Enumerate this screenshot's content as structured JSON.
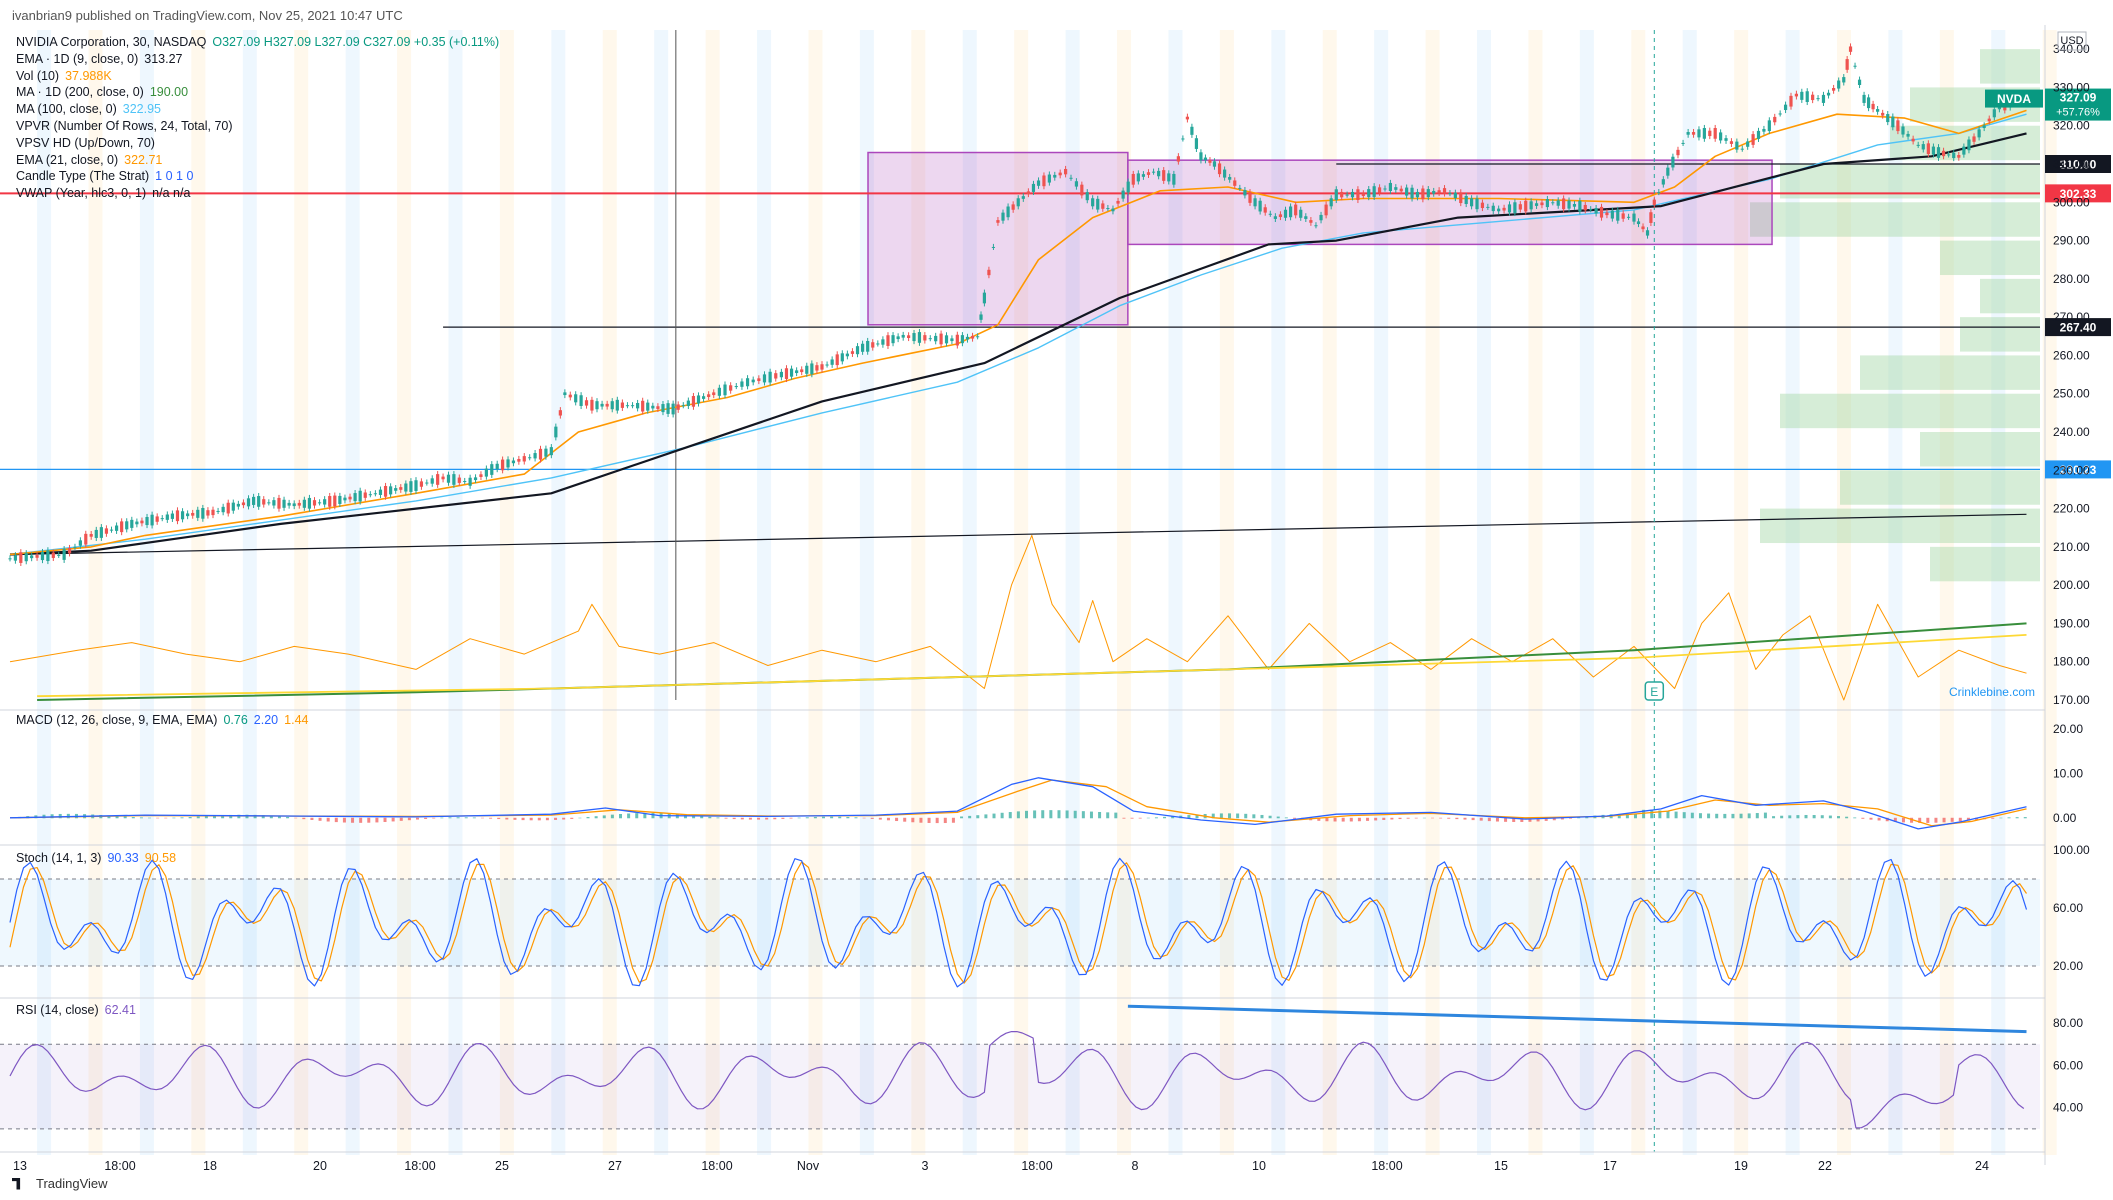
{
  "header": {
    "published": "ivanbrian9 published on TradingView.com, Nov 25, 2021 10:47 UTC",
    "currency": "USD"
  },
  "legend": [
    {
      "label": "NVIDIA Corporation, 30, NASDAQ",
      "value": "O327.09  H327.09  L327.09  C327.09  +0.35 (+0.11%)",
      "color": "#089981"
    },
    {
      "label": "EMA · 1D (9, close, 0)",
      "value": "313.27",
      "color": "#131722"
    },
    {
      "label": "Vol (10)",
      "value": "37.988K",
      "color": "#ff9800"
    },
    {
      "label": "MA · 1D (200, close, 0)",
      "value": "190.00",
      "color": "#388e3c"
    },
    {
      "label": "MA (100, close, 0)",
      "value": "322.95",
      "color": "#4fc3f7"
    },
    {
      "label": "VPVR (Number Of Rows, 24, Total, 70)",
      "value": "",
      "color": "#131722"
    },
    {
      "label": "VPSV HD (Up/Down, 70)",
      "value": "",
      "color": "#131722"
    },
    {
      "label": "EMA (21, close, 0)",
      "value": "322.71",
      "color": "#ff9800"
    },
    {
      "label": "Candle Type (The Strat)",
      "value": "1  0  1  0",
      "color": "#2962ff"
    },
    {
      "label": "VWAP (Year, hlc3, 0, 1)",
      "value": "n/a  n/a",
      "color": "#131722"
    }
  ],
  "panes": {
    "macd": {
      "label": "MACD (12, 26, close, 9, EMA, EMA)",
      "values": [
        "0.76",
        "2.20",
        "1.44"
      ],
      "colors": [
        "#089981",
        "#2962ff",
        "#ff9800"
      ]
    },
    "stoch": {
      "label": "Stoch (14, 1, 3)",
      "values": [
        "90.33",
        "90.58"
      ],
      "colors": [
        "#2962ff",
        "#ff9800"
      ]
    },
    "rsi": {
      "label": "RSI (14, close)",
      "values": [
        "62.41"
      ],
      "colors": [
        "#7e57c2"
      ]
    }
  },
  "watermark": "Crinklebine.com",
  "earnings_marker": "E",
  "footer": {
    "brand": "TradingView"
  },
  "chart_data": {
    "type": "line",
    "symbol": "NVDA",
    "price_axis": {
      "ylim": [
        170,
        345
      ],
      "ticks": [
        170,
        180,
        190,
        200,
        210,
        220,
        230,
        240,
        250,
        260,
        270,
        280,
        290,
        300,
        310,
        320,
        330,
        340
      ]
    },
    "time_ticks": [
      "13",
      "18:00",
      "18",
      "20",
      "18:00",
      "25",
      "27",
      "18:00",
      "Nov",
      "3",
      "18:00",
      "8",
      "10",
      "18:00",
      "15",
      "17",
      "19",
      "22",
      "24"
    ],
    "price_series": {
      "name": "NVDA",
      "color": "#089981",
      "points": [
        [
          0,
          207
        ],
        [
          40,
          208
        ],
        [
          60,
          213
        ],
        [
          90,
          216
        ],
        [
          120,
          218
        ],
        [
          150,
          219
        ],
        [
          180,
          222
        ],
        [
          210,
          221
        ],
        [
          240,
          222
        ],
        [
          270,
          224
        ],
        [
          300,
          226
        ],
        [
          320,
          228
        ],
        [
          340,
          227
        ],
        [
          360,
          231
        ],
        [
          380,
          233
        ],
        [
          400,
          235
        ],
        [
          410,
          250
        ],
        [
          430,
          247
        ],
        [
          460,
          247
        ],
        [
          490,
          246
        ],
        [
          520,
          250
        ],
        [
          545,
          253
        ],
        [
          570,
          255
        ],
        [
          600,
          257
        ],
        [
          630,
          262
        ],
        [
          660,
          265
        ],
        [
          700,
          264
        ],
        [
          715,
          265
        ],
        [
          720,
          275
        ],
        [
          730,
          295
        ],
        [
          745,
          300
        ],
        [
          760,
          305
        ],
        [
          780,
          308
        ],
        [
          800,
          300
        ],
        [
          815,
          298
        ],
        [
          830,
          306
        ],
        [
          845,
          308
        ],
        [
          860,
          306
        ],
        [
          870,
          322
        ],
        [
          880,
          312
        ],
        [
          890,
          310
        ],
        [
          905,
          305
        ],
        [
          920,
          300
        ],
        [
          935,
          296
        ],
        [
          950,
          298
        ],
        [
          965,
          294
        ],
        [
          980,
          302
        ],
        [
          1000,
          302
        ],
        [
          1020,
          304
        ],
        [
          1040,
          302
        ],
        [
          1060,
          303
        ],
        [
          1080,
          300
        ],
        [
          1100,
          298
        ],
        [
          1120,
          299
        ],
        [
          1140,
          300
        ],
        [
          1160,
          299
        ],
        [
          1180,
          297
        ],
        [
          1200,
          296
        ],
        [
          1210,
          292
        ],
        [
          1215,
          300
        ],
        [
          1225,
          308
        ],
        [
          1240,
          318
        ],
        [
          1260,
          318
        ],
        [
          1280,
          314
        ],
        [
          1300,
          320
        ],
        [
          1320,
          328
        ],
        [
          1340,
          327
        ],
        [
          1355,
          332
        ],
        [
          1360,
          340
        ],
        [
          1370,
          327
        ],
        [
          1380,
          324
        ],
        [
          1395,
          320
        ],
        [
          1410,
          315
        ],
        [
          1425,
          313
        ],
        [
          1440,
          312
        ],
        [
          1455,
          318
        ],
        [
          1470,
          325
        ],
        [
          1490,
          327
        ]
      ]
    },
    "ema9_daily": {
      "name": "EMA · 1D (9, close, 0)",
      "color": "#131722",
      "points": [
        [
          0,
          208
        ],
        [
          60,
          209
        ],
        [
          120,
          212
        ],
        [
          200,
          216
        ],
        [
          300,
          220
        ],
        [
          400,
          224
        ],
        [
          500,
          236
        ],
        [
          600,
          248
        ],
        [
          720,
          258
        ],
        [
          820,
          275
        ],
        [
          930,
          289
        ],
        [
          980,
          290
        ],
        [
          1070,
          296
        ],
        [
          1220,
          299
        ],
        [
          1340,
          310
        ],
        [
          1420,
          312
        ],
        [
          1490,
          318
        ]
      ]
    },
    "ema21": {
      "name": "EMA (21, close, 0)",
      "color": "#ff9800",
      "points": [
        [
          0,
          208
        ],
        [
          60,
          210
        ],
        [
          100,
          213
        ],
        [
          200,
          218
        ],
        [
          300,
          224
        ],
        [
          380,
          229
        ],
        [
          420,
          240
        ],
        [
          470,
          245
        ],
        [
          530,
          249
        ],
        [
          580,
          254
        ],
        [
          630,
          258
        ],
        [
          700,
          263
        ],
        [
          730,
          268
        ],
        [
          760,
          285
        ],
        [
          800,
          296
        ],
        [
          850,
          303
        ],
        [
          900,
          304
        ],
        [
          950,
          300
        ],
        [
          1000,
          301
        ],
        [
          1100,
          301
        ],
        [
          1200,
          300
        ],
        [
          1230,
          304
        ],
        [
          1260,
          312
        ],
        [
          1300,
          318
        ],
        [
          1350,
          323
        ],
        [
          1400,
          322
        ],
        [
          1440,
          318
        ],
        [
          1490,
          324
        ]
      ]
    },
    "ma100": {
      "name": "MA (100, close, 0)",
      "color": "#4fc3f7",
      "points": [
        [
          0,
          208
        ],
        [
          100,
          212
        ],
        [
          200,
          217
        ],
        [
          300,
          222
        ],
        [
          400,
          228
        ],
        [
          500,
          236
        ],
        [
          600,
          245
        ],
        [
          700,
          253
        ],
        [
          760,
          262
        ],
        [
          820,
          273
        ],
        [
          880,
          281
        ],
        [
          940,
          288
        ],
        [
          1000,
          292
        ],
        [
          1100,
          295
        ],
        [
          1200,
          298
        ],
        [
          1300,
          306
        ],
        [
          1380,
          315
        ],
        [
          1440,
          318
        ],
        [
          1490,
          323
        ]
      ]
    },
    "ma200_daily": {
      "name": "MA · 1D (200, close, 0)",
      "color": "#388e3c",
      "points": [
        [
          20,
          170
        ],
        [
          300,
          172
        ],
        [
          600,
          175
        ],
        [
          900,
          178
        ],
        [
          1200,
          183
        ],
        [
          1490,
          190
        ]
      ]
    },
    "vwap_year": {
      "name": "VWAP (Year, hlc3, 0, 1)",
      "color": "#fdd835",
      "points": [
        [
          20,
          171
        ],
        [
          400,
          173
        ],
        [
          800,
          177
        ],
        [
          1200,
          181
        ],
        [
          1490,
          187
        ]
      ]
    },
    "volume_line": {
      "name": "Vol (10)",
      "color": "#ff9800",
      "points": [
        [
          0,
          180
        ],
        [
          50,
          183
        ],
        [
          90,
          185
        ],
        [
          130,
          182
        ],
        [
          170,
          180
        ],
        [
          210,
          184
        ],
        [
          250,
          182
        ],
        [
          300,
          178
        ],
        [
          340,
          186
        ],
        [
          380,
          182
        ],
        [
          420,
          188
        ],
        [
          430,
          195
        ],
        [
          450,
          184
        ],
        [
          480,
          182
        ],
        [
          520,
          185
        ],
        [
          560,
          179
        ],
        [
          600,
          183
        ],
        [
          640,
          180
        ],
        [
          680,
          184
        ],
        [
          720,
          173
        ],
        [
          740,
          200
        ],
        [
          755,
          213
        ],
        [
          770,
          195
        ],
        [
          790,
          185
        ],
        [
          800,
          196
        ],
        [
          815,
          180
        ],
        [
          840,
          186
        ],
        [
          870,
          180
        ],
        [
          900,
          192
        ],
        [
          930,
          178
        ],
        [
          960,
          190
        ],
        [
          990,
          180
        ],
        [
          1020,
          185
        ],
        [
          1050,
          178
        ],
        [
          1080,
          186
        ],
        [
          1110,
          180
        ],
        [
          1140,
          186
        ],
        [
          1170,
          176
        ],
        [
          1200,
          184
        ],
        [
          1230,
          173
        ],
        [
          1250,
          190
        ],
        [
          1270,
          198
        ],
        [
          1290,
          178
        ],
        [
          1310,
          187
        ],
        [
          1330,
          192
        ],
        [
          1355,
          170
        ],
        [
          1380,
          195
        ],
        [
          1410,
          176
        ],
        [
          1440,
          183
        ],
        [
          1470,
          179
        ],
        [
          1490,
          177
        ]
      ]
    },
    "horizontal_levels": [
      {
        "value": 310.0,
        "label": "310.00",
        "color": "#131722"
      },
      {
        "value": 302.33,
        "label": "302.33",
        "color": "#f23645"
      },
      {
        "value": 267.4,
        "label": "267.40",
        "color": "#131722"
      },
      {
        "value": 230.23,
        "label": "230.23",
        "color": "#2196f3"
      }
    ],
    "current_price": {
      "symbol": "NVDA",
      "value": "327.09",
      "change": "+57.76%",
      "color": "#089981"
    },
    "rectangles": [
      {
        "x1": 634,
        "x2": 826,
        "y1": 268,
        "y2": 313,
        "color": "#ab47bc"
      },
      {
        "x1": 826,
        "x2": 1302,
        "y1": 289,
        "y2": 311,
        "color": "#ab47bc"
      }
    ],
    "macd": {
      "ylim": [
        -5,
        22
      ],
      "ticks": [
        0,
        10,
        20
      ],
      "macd_line": {
        "color": "#2962ff",
        "points": [
          [
            0,
            0
          ],
          [
            100,
            0.6
          ],
          [
            200,
            0.4
          ],
          [
            300,
            0.2
          ],
          [
            400,
            0.8
          ],
          [
            440,
            2.2
          ],
          [
            480,
            0.5
          ],
          [
            560,
            0.3
          ],
          [
            640,
            0.6
          ],
          [
            700,
            1.5
          ],
          [
            740,
            7.5
          ],
          [
            760,
            9
          ],
          [
            800,
            7
          ],
          [
            830,
            1.5
          ],
          [
            880,
            -0.5
          ],
          [
            920,
            -1.5
          ],
          [
            980,
            0.8
          ],
          [
            1050,
            1.2
          ],
          [
            1120,
            -0.3
          ],
          [
            1180,
            0.4
          ],
          [
            1220,
            2
          ],
          [
            1250,
            5
          ],
          [
            1290,
            2.8
          ],
          [
            1340,
            3.8
          ],
          [
            1370,
            1.5
          ],
          [
            1410,
            -2.5
          ],
          [
            1440,
            -1
          ],
          [
            1490,
            2.5
          ]
        ]
      },
      "signal_line": {
        "color": "#ff9800",
        "points": [
          [
            0,
            0
          ],
          [
            100,
            0.5
          ],
          [
            200,
            0.4
          ],
          [
            300,
            0.3
          ],
          [
            400,
            0.6
          ],
          [
            450,
            1.8
          ],
          [
            500,
            0.7
          ],
          [
            560,
            0.4
          ],
          [
            640,
            0.5
          ],
          [
            700,
            1.2
          ],
          [
            745,
            6
          ],
          [
            770,
            8.5
          ],
          [
            810,
            7
          ],
          [
            840,
            2.5
          ],
          [
            890,
            0
          ],
          [
            930,
            -1
          ],
          [
            990,
            0.5
          ],
          [
            1050,
            1
          ],
          [
            1120,
            0
          ],
          [
            1180,
            0.3
          ],
          [
            1225,
            1.5
          ],
          [
            1260,
            4
          ],
          [
            1300,
            2.8
          ],
          [
            1340,
            3.2
          ],
          [
            1380,
            2
          ],
          [
            1420,
            -1.8
          ],
          [
            1450,
            -0.8
          ],
          [
            1490,
            2
          ]
        ]
      }
    },
    "stoch": {
      "ylim": [
        0,
        100
      ],
      "ticks": [
        20,
        60,
        100
      ],
      "bands": [
        20,
        80
      ],
      "k_color": "#2962ff",
      "d_color": "#ff9800"
    },
    "rsi": {
      "ylim": [
        20,
        90
      ],
      "ticks": [
        40,
        60,
        80
      ],
      "bands": [
        30,
        70
      ],
      "color": "#7e57c2",
      "trendline": {
        "color": "#2e86de",
        "points": [
          [
            826,
            88
          ],
          [
            1490,
            76
          ]
        ]
      }
    }
  }
}
